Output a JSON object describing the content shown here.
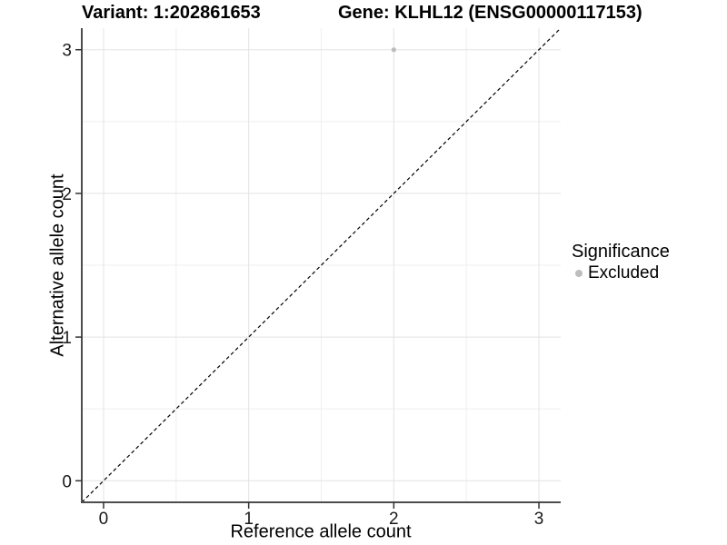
{
  "title": {
    "variant": "Variant: 1:202861653",
    "gene": "Gene: KLHL12 (ENSG00000117153)"
  },
  "axes": {
    "x_label": "Reference allele count",
    "y_label": "Alternative allele count"
  },
  "legend": {
    "title": "Significance",
    "items": [
      {
        "label": "Excluded",
        "color": "#bdbdbd"
      }
    ]
  },
  "chart_data": {
    "type": "scatter",
    "title": "Variant: 1:202861653   Gene: KLHL12 (ENSG00000117153)",
    "xlabel": "Reference allele count",
    "ylabel": "Alternative allele count",
    "xlim": [
      -0.15,
      3.15
    ],
    "ylim": [
      -0.15,
      3.15
    ],
    "x_ticks": [
      0,
      1,
      2,
      3
    ],
    "y_ticks": [
      0,
      1,
      2,
      3
    ],
    "minor_ticks": [
      0.5,
      1.5,
      2.5
    ],
    "grid": true,
    "legend_title": "Significance",
    "legend_position": "right",
    "identity_line": {
      "style": "dashed",
      "color": "#000000"
    },
    "series": [
      {
        "name": "Excluded",
        "color": "#bdbdbd",
        "points": [
          {
            "x": 2,
            "y": 3
          }
        ]
      }
    ]
  },
  "colors": {
    "background": "#ffffff",
    "grid_major": "#e3e3e3",
    "grid_minor": "#efefef",
    "axis_line": "#4d4d4d",
    "tick_mark": "#333333",
    "tick_text": "#1a1a1a",
    "identity_line": "#000000",
    "point": "#bdbdbd"
  }
}
